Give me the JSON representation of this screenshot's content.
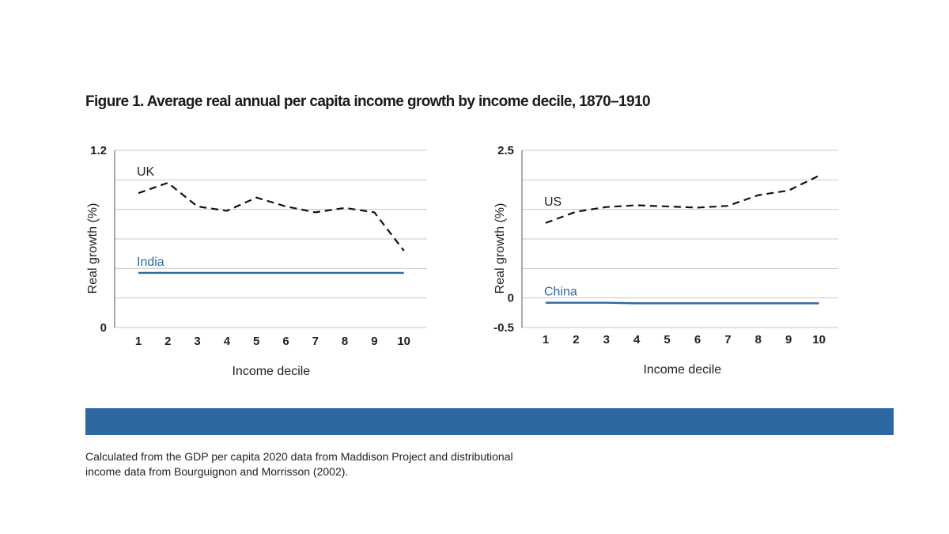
{
  "title": "Figure 1. Average real annual per capita income growth by income decile, 1870–1910",
  "source_note": "Calculated from the GDP per capita 2020 data from Maddison Project and distributional income data from Bourguignon and Morrisson (2002).",
  "colors": {
    "accent_blue": "#2f67a0",
    "line_black": "#111111",
    "grid": "#c8c8c8"
  },
  "chart_data": [
    {
      "type": "line",
      "title": "",
      "xlabel": "Income decile",
      "ylabel": "Real growth (%)",
      "x": [
        1,
        2,
        3,
        4,
        5,
        6,
        7,
        8,
        9,
        10
      ],
      "ylim": [
        0,
        1.2
      ],
      "yticks_labeled": [
        "0",
        "1.2"
      ],
      "grid": true,
      "series": [
        {
          "name": "UK",
          "style": "dashed",
          "color": "#111111",
          "values": [
            0.91,
            0.98,
            0.82,
            0.79,
            0.88,
            0.82,
            0.78,
            0.81,
            0.78,
            0.52
          ]
        },
        {
          "name": "India",
          "style": "solid",
          "color": "#2f67a0",
          "values": [
            0.37,
            0.37,
            0.37,
            0.37,
            0.37,
            0.37,
            0.37,
            0.37,
            0.37,
            0.37
          ]
        }
      ]
    },
    {
      "type": "line",
      "title": "",
      "xlabel": "Income decile",
      "ylabel": "Real growth (%)",
      "x": [
        1,
        2,
        3,
        4,
        5,
        6,
        7,
        8,
        9,
        10
      ],
      "ylim": [
        -0.5,
        2.5
      ],
      "yticks_labeled": [
        "2.5",
        "0",
        "-0.5"
      ],
      "grid": true,
      "series": [
        {
          "name": "US",
          "style": "dashed",
          "color": "#111111",
          "values": [
            1.27,
            1.46,
            1.54,
            1.57,
            1.55,
            1.53,
            1.56,
            1.74,
            1.82,
            2.07
          ]
        },
        {
          "name": "China",
          "style": "solid",
          "color": "#2f67a0",
          "values": [
            -0.08,
            -0.08,
            -0.08,
            -0.09,
            -0.09,
            -0.09,
            -0.09,
            -0.09,
            -0.09,
            -0.09
          ]
        }
      ]
    }
  ]
}
